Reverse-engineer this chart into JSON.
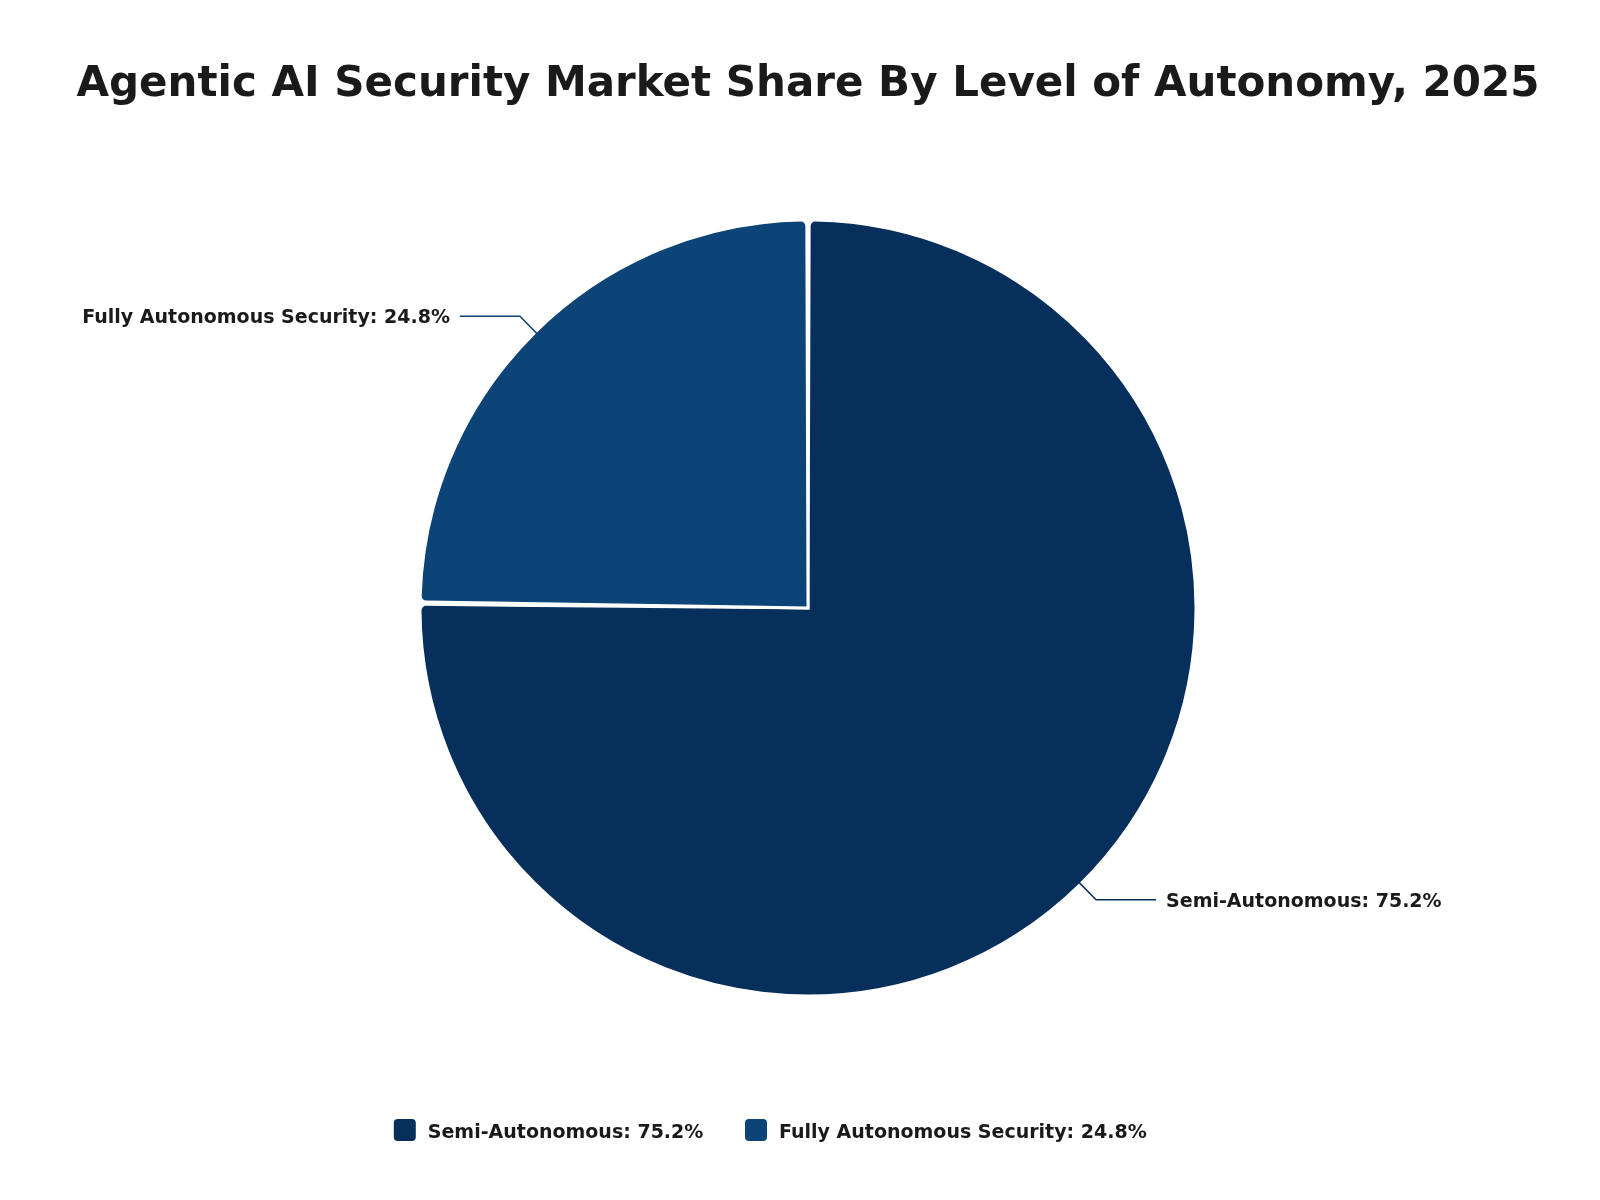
{
  "chart_data": {
    "type": "pie",
    "title": "Agentic AI Security Market Share By Level of Autonomy, 2025",
    "categories": [
      "Semi-Autonomous",
      "Fully Autonomous Security"
    ],
    "values": [
      75.2,
      24.8
    ],
    "colors": [
      "#06305b",
      "#0c4478"
    ],
    "value_labels": [
      "75.2%",
      "24.8%"
    ],
    "legend": "bottom"
  }
}
